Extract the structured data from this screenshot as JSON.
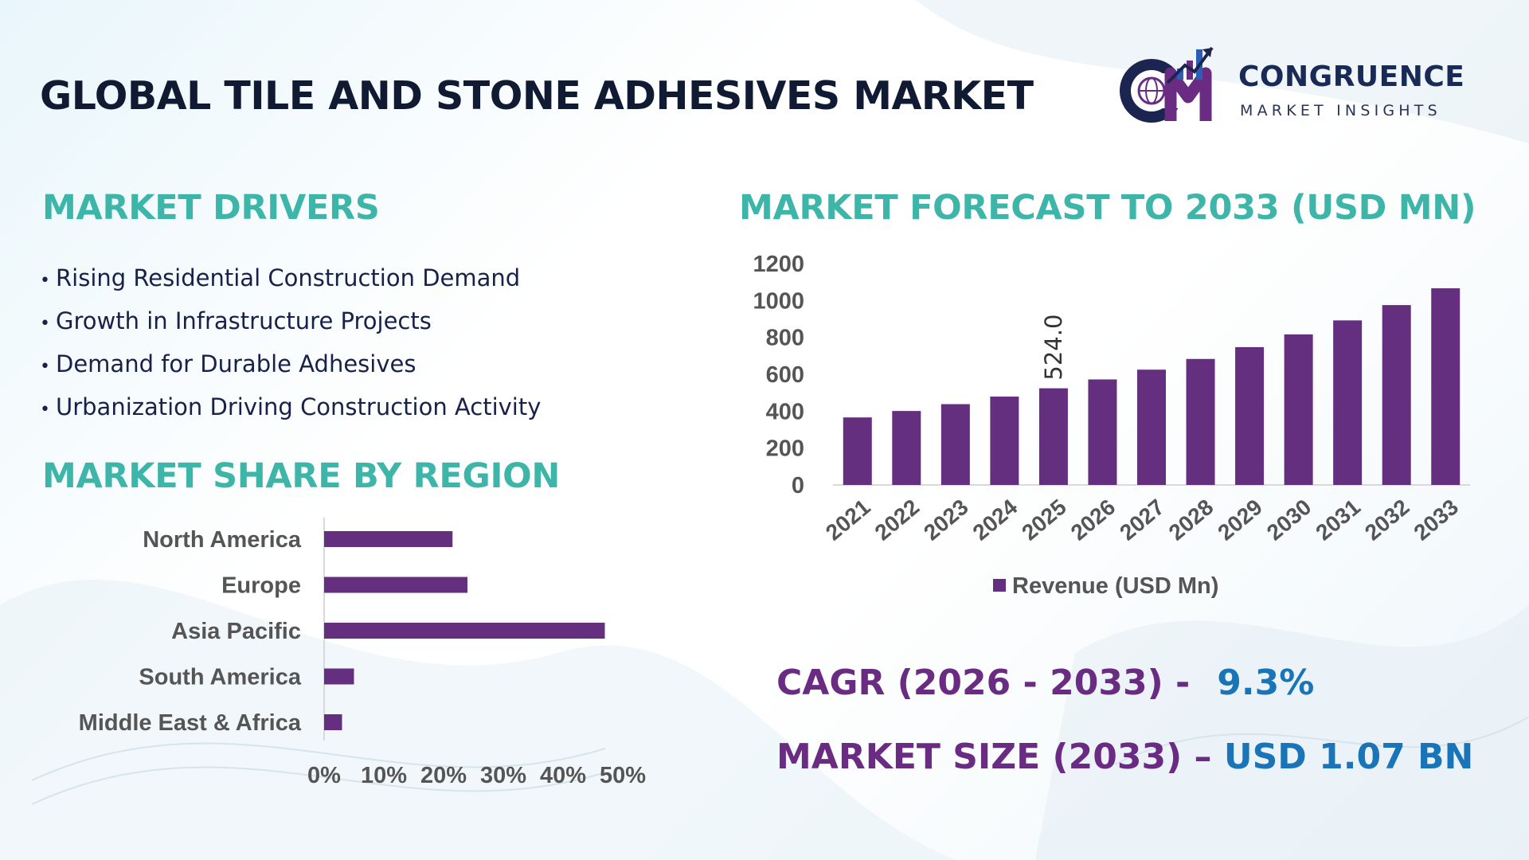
{
  "header": {
    "title": "GLOBAL TILE AND STONE ADHESIVES MARKET"
  },
  "logo": {
    "mark_text": "CM",
    "wordmark": "CONGRUENCE",
    "tagline": "MARKET INSIGHTS"
  },
  "drivers": {
    "title": "MARKET DRIVERS",
    "bullet": "•",
    "items": [
      "Rising Residential Construction Demand",
      "Growth in Infrastructure Projects",
      "Demand for Durable Adhesives",
      "Urbanization Driving Construction Activity"
    ]
  },
  "region": {
    "title": "MARKET SHARE BY REGION"
  },
  "forecast": {
    "title": "MARKET FORECAST TO 2033 (USD MN)"
  },
  "metrics": {
    "cagr_label": "CAGR (2026 - 2033) -",
    "cagr_value": "9.3%",
    "size_label": "MARKET SIZE (2033) –",
    "size_value": "USD 1.07 BN"
  },
  "colors": {
    "bar": "#642f7e",
    "accent_teal": "#3db5a9",
    "metric_label": "#6a2c82",
    "metric_value": "#1a74b8",
    "title": "#111a33"
  },
  "chart_data": [
    {
      "type": "bar",
      "orientation": "horizontal",
      "categories": [
        "North America",
        "Europe",
        "Asia Pacific",
        "South America",
        "Middle East & Africa"
      ],
      "values": [
        21.5,
        24,
        47,
        5,
        3
      ],
      "xticks": [
        "0%",
        "10%",
        "20%",
        "30%",
        "40%",
        "50%"
      ],
      "xlim": [
        0,
        50
      ],
      "grid": false,
      "legend": "none"
    },
    {
      "type": "bar",
      "categories": [
        "2021",
        "2022",
        "2023",
        "2024",
        "2025",
        "2026",
        "2027",
        "2028",
        "2029",
        "2030",
        "2031",
        "2032",
        "2033"
      ],
      "series": [
        {
          "name": "Revenue (USD Mn)",
          "values": [
            366,
            401,
            438,
            479,
            524.0,
            572,
            625,
            683,
            747,
            816,
            892,
            975,
            1066
          ]
        }
      ],
      "yticks": [
        0,
        200,
        400,
        600,
        800,
        1000,
        1200
      ],
      "ylim": [
        0,
        1200
      ],
      "data_labels": [
        {
          "category": "2025",
          "text": "524.0"
        }
      ],
      "grid": false,
      "legend": "bottom"
    }
  ]
}
